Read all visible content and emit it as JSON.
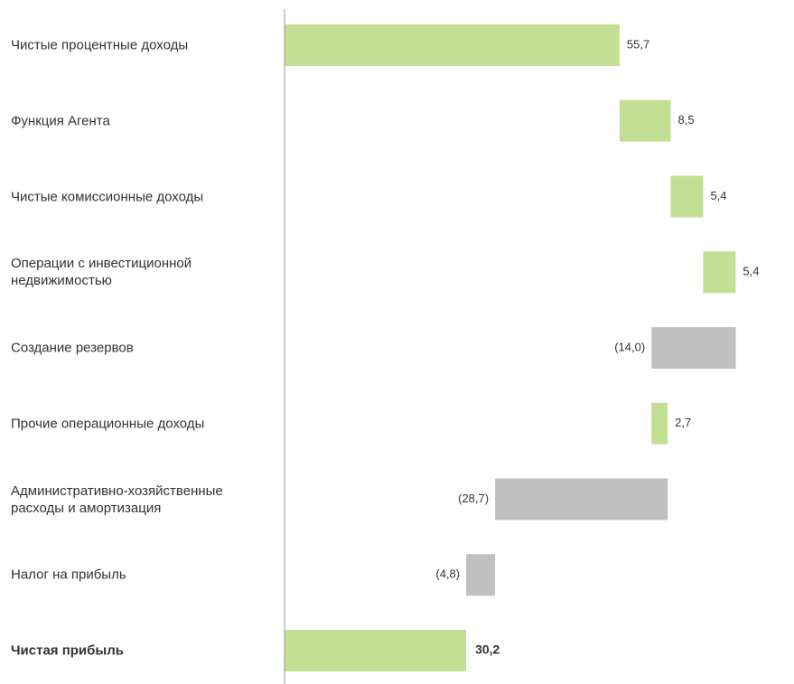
{
  "chart_data": {
    "type": "waterfall",
    "categories": [
      "Чистые процентные доходы",
      "Функция Агента",
      "Чистые комиссионные доходы",
      "Операции с инвестиционной недвижимостью",
      "Создание резервов",
      "Прочие операционные доходы",
      "Административно-хозяйственные расходы и амортизация",
      "Налог на прибыль",
      "Чистая прибыль"
    ],
    "values": [
      55.7,
      8.5,
      5.4,
      5.4,
      -14.0,
      2.7,
      -28.7,
      -4.8,
      30.2
    ],
    "value_labels": [
      "55,7",
      "8,5",
      "5,4",
      "5,4",
      "(14,0)",
      "2,7",
      "(28,7)",
      "(4,8)",
      "30,2"
    ],
    "total_index": 8,
    "increase_color": "#c3df94",
    "decrease_color": "#c0c0c0",
    "total_color": "#c3df94",
    "xlim": [
      0,
      84.7
    ]
  }
}
